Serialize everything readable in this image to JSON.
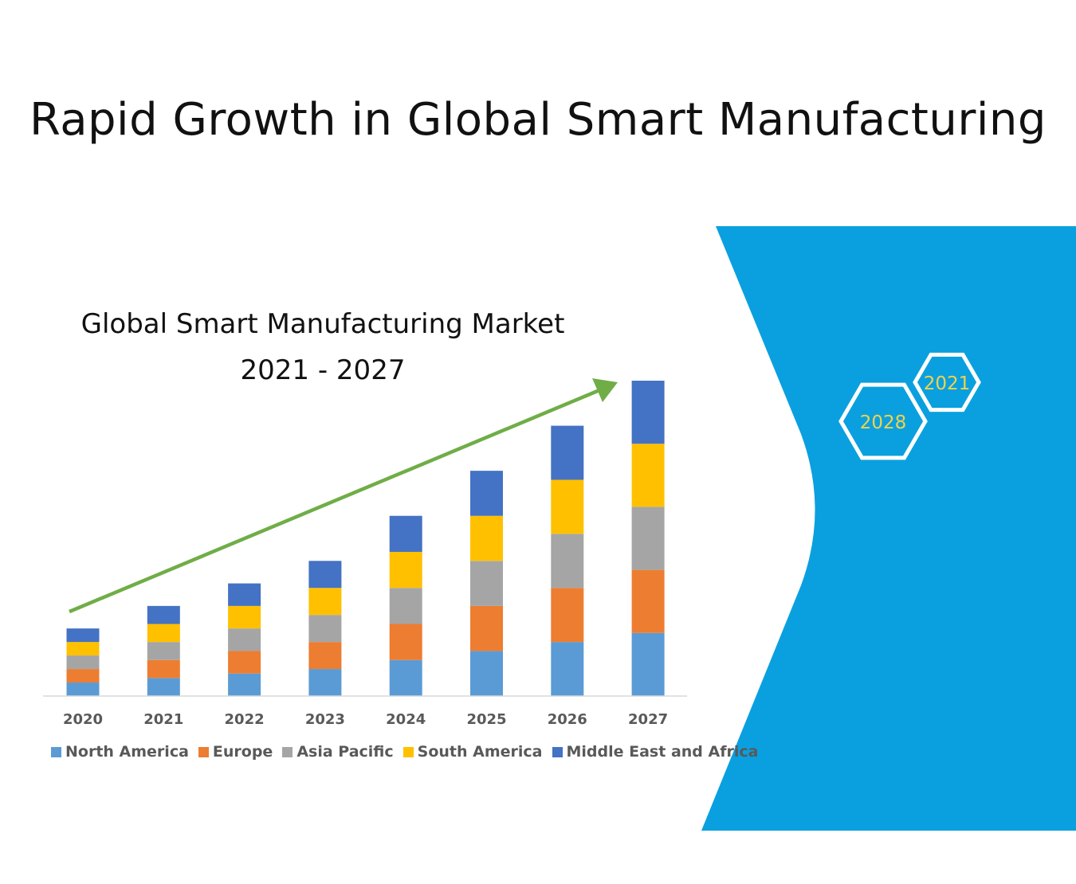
{
  "page": {
    "title": "Rapid Growth in Global Smart Manufacturing"
  },
  "chart_data": {
    "type": "bar",
    "stacked": true,
    "title": "Global Smart Manufacturing Market",
    "subtitle": "2021 - 2027",
    "categories": [
      "2020",
      "2021",
      "2022",
      "2023",
      "2024",
      "2025",
      "2026",
      "2027"
    ],
    "series": [
      {
        "name": "North America",
        "color": "#5B9BD5",
        "values": [
          3,
          4,
          5,
          6,
          8,
          10,
          12,
          14
        ]
      },
      {
        "name": "Europe",
        "color": "#ED7D31",
        "values": [
          3,
          4,
          5,
          6,
          8,
          10,
          12,
          14
        ]
      },
      {
        "name": "Asia Pacific",
        "color": "#A5A5A5",
        "values": [
          3,
          4,
          5,
          6,
          8,
          10,
          12,
          14
        ]
      },
      {
        "name": "South America",
        "color": "#FFC000",
        "values": [
          3,
          4,
          5,
          6,
          8,
          10,
          12,
          14
        ]
      },
      {
        "name": "Middle East and Africa",
        "color": "#4472C4",
        "values": [
          3,
          4,
          5,
          6,
          8,
          10,
          12,
          14
        ]
      }
    ],
    "ylim": [
      0,
      70
    ],
    "grid": false,
    "legend_position": "bottom",
    "annotation": "upward growth arrow"
  },
  "decor": {
    "panel_color": "#0AA0DF",
    "arrow_color": "#70AD47",
    "hexagons": [
      {
        "label": "2021",
        "label_color": "#F2D24B"
      },
      {
        "label": "2028",
        "label_color": "#F2D24B"
      }
    ]
  }
}
